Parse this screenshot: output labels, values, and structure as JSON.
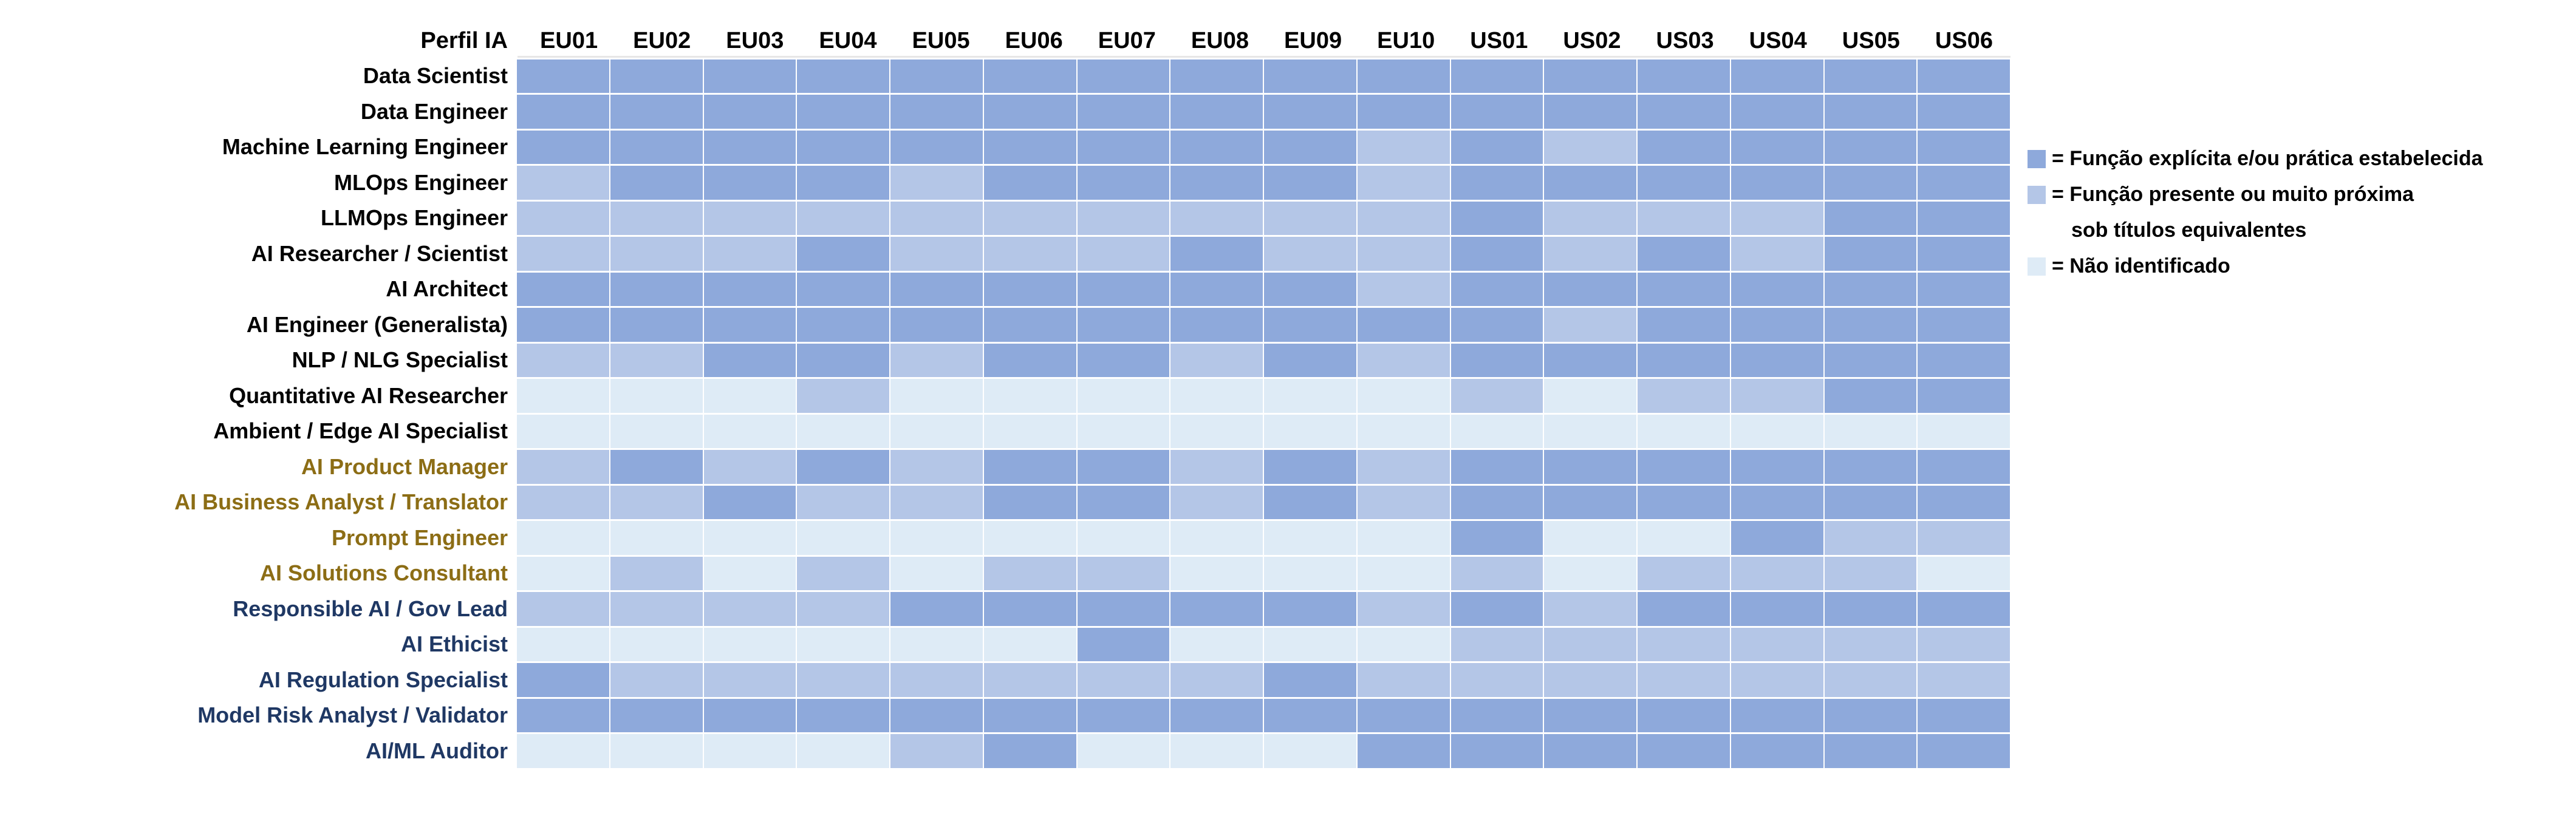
{
  "page": {
    "background": "#FFFFFF"
  },
  "header": {
    "corner_label": "Perfil IA",
    "columns": [
      "EU01",
      "EU02",
      "EU03",
      "EU04",
      "EU05",
      "EU06",
      "EU07",
      "EU08",
      "EU09",
      "EU10",
      "US01",
      "US02",
      "US03",
      "US04",
      "US05",
      "US06"
    ]
  },
  "legend": {
    "position": "right",
    "items": [
      {
        "key": "explicit",
        "color": "#8EA9DB",
        "lines": [
          "= Função explícita e/ou prática estabelecida"
        ]
      },
      {
        "key": "present",
        "color": "#B4C6E7",
        "lines": [
          "= Função presente ou muito próxima",
          "sob títulos equivalentes"
        ]
      },
      {
        "key": "not_identified",
        "color": "#DEEBF6",
        "lines": [
          "= Não identificado"
        ]
      }
    ]
  },
  "chart_data": {
    "type": "heatmap",
    "x_categories": [
      "EU01",
      "EU02",
      "EU03",
      "EU04",
      "EU05",
      "EU06",
      "EU07",
      "EU08",
      "EU09",
      "EU10",
      "US01",
      "US02",
      "US03",
      "US04",
      "US05",
      "US06"
    ],
    "y_categories": [
      "Data Scientist",
      "Data Engineer",
      "Machine Learning Engineer",
      "MLOps Engineer",
      "LLMOps Engineer",
      "AI Researcher / Scientist",
      "AI Architect",
      "AI Engineer (Generalista)",
      "NLP / NLG Specialist",
      "Quantitative AI Researcher",
      "Ambient / Edge AI Specialist",
      "AI Product Manager",
      "AI Business Analyst / Translator",
      "Prompt Engineer",
      "AI Solutions Consultant",
      "Responsible AI / Gov Lead",
      "AI Ethicist",
      "AI Regulation Specialist",
      "Model Risk Analyst / Validator",
      "AI/ML Auditor"
    ],
    "cell_levels": {
      "D": {
        "label": "Função explícita e/ou prática estabelecida",
        "color": "#8EA9DB"
      },
      "M": {
        "label": "Função presente ou muito próxima sob títulos equivalentes",
        "color": "#B4C6E7"
      },
      "L": {
        "label": "Não identificado",
        "color": "#DEEBF6"
      }
    },
    "row_groups": [
      {
        "name": "technical",
        "label_color": "#000000"
      },
      {
        "name": "business",
        "label_color": "#8C6D15"
      },
      {
        "name": "governance",
        "label_color": "#1F3864"
      }
    ],
    "rows": [
      {
        "label": "Data Scientist",
        "group": "technical",
        "cells": "DDDDDDDDDDDDDDDD"
      },
      {
        "label": "Data Engineer",
        "group": "technical",
        "cells": "DDDDDDDDDDDDDDDD"
      },
      {
        "label": "Machine Learning Engineer",
        "group": "technical",
        "cells": "DDDDDDDDDMDMDDDD"
      },
      {
        "label": "MLOps Engineer",
        "group": "technical",
        "cells": "MDDDMDDDDMDDDDDD"
      },
      {
        "label": "LLMOps Engineer",
        "group": "technical",
        "cells": "MMMMMMMMMMDMMMDD"
      },
      {
        "label": "AI Researcher / Scientist",
        "group": "technical",
        "cells": "MMMDMMMDMMDMDMDD"
      },
      {
        "label": "AI Architect",
        "group": "technical",
        "cells": "DDDDDDDDDMDDDDDD"
      },
      {
        "label": "AI Engineer (Generalista)",
        "group": "technical",
        "cells": "DDDDDDDDDDDMDDDD"
      },
      {
        "label": "NLP / NLG Specialist",
        "group": "technical",
        "cells": "MMDDMDDMDMDDDDDD"
      },
      {
        "label": "Quantitative AI Researcher",
        "group": "technical",
        "cells": "LLLMLLLLLLMLMMDD"
      },
      {
        "label": "Ambient / Edge AI Specialist",
        "group": "technical",
        "cells": "LLLLLLLLLLLLLLLL"
      },
      {
        "label": "AI Product Manager",
        "group": "business",
        "cells": "MDMDMDDMDMDDDDDD"
      },
      {
        "label": "AI Business Analyst / Translator",
        "group": "business",
        "cells": "MMDMMDDMDMDDDDDD"
      },
      {
        "label": "Prompt Engineer",
        "group": "business",
        "cells": "LLLLLLLLLLDLLDMM"
      },
      {
        "label": "AI Solutions Consultant",
        "group": "business",
        "cells": "LMLMLMMLLLMLMMML"
      },
      {
        "label": "Responsible AI / Gov Lead",
        "group": "governance",
        "cells": "MMMMDDDDDMDMDDDD"
      },
      {
        "label": "AI Ethicist",
        "group": "governance",
        "cells": "LLLLLLDLLLMMMMMM"
      },
      {
        "label": "AI Regulation Specialist",
        "group": "governance",
        "cells": "DMMMMMMMDMMMMMMM"
      },
      {
        "label": "Model Risk Analyst / Validator",
        "group": "governance",
        "cells": "DDDDDDDDDDDDDDDD"
      },
      {
        "label": "AI/ML Auditor",
        "group": "governance",
        "cells": "LLLLMDLLLDDDDDDD"
      }
    ]
  }
}
